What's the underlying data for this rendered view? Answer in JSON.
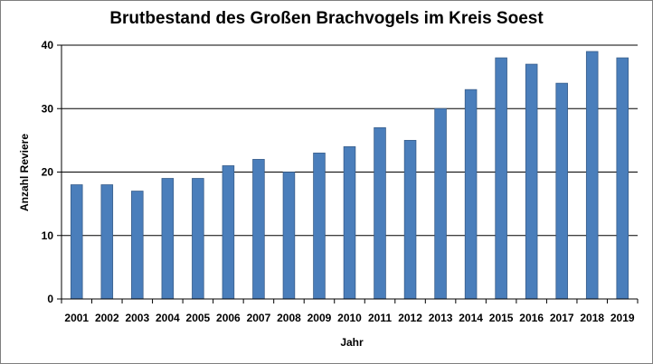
{
  "chart_data": {
    "type": "bar",
    "title": "Brutbestand des Großen Brachvogels im Kreis Soest",
    "xlabel": "Jahr",
    "ylabel": "Anzahl Reviere",
    "categories": [
      "2001",
      "2002",
      "2003",
      "2004",
      "2005",
      "2006",
      "2007",
      "2008",
      "2009",
      "2010",
      "2011",
      "2012",
      "2013",
      "2014",
      "2015",
      "2016",
      "2017",
      "2018",
      "2019"
    ],
    "values": [
      18,
      18,
      17,
      19,
      19,
      21,
      22,
      20,
      23,
      24,
      27,
      25,
      30,
      33,
      38,
      37,
      34,
      39,
      38
    ],
    "ylim": [
      0,
      40
    ],
    "yticks": [
      0,
      10,
      20,
      30,
      40
    ],
    "grid": true,
    "legend": "none",
    "bar_color": "#4a7ebb",
    "bar_edge_color": "#385d8a"
  }
}
